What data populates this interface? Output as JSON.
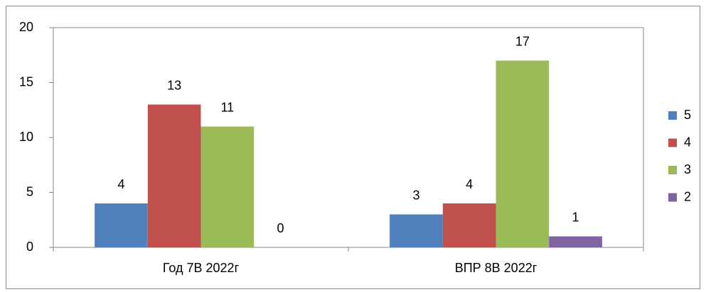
{
  "chart_data": {
    "type": "bar",
    "categories": [
      "Год 7В 2022г",
      "ВПР 8В 2022г"
    ],
    "series": [
      {
        "name": "5",
        "color": "#4f81bd",
        "values": [
          4,
          3
        ]
      },
      {
        "name": "4",
        "color": "#c0504d",
        "values": [
          13,
          4
        ]
      },
      {
        "name": "3",
        "color": "#9bbb59",
        "values": [
          11,
          17
        ]
      },
      {
        "name": "2",
        "color": "#8064a2",
        "values": [
          0,
          1
        ]
      }
    ],
    "ylim": [
      0,
      20
    ],
    "yticks": [
      0,
      5,
      10,
      15,
      20
    ],
    "grid": false,
    "legend": "right"
  }
}
